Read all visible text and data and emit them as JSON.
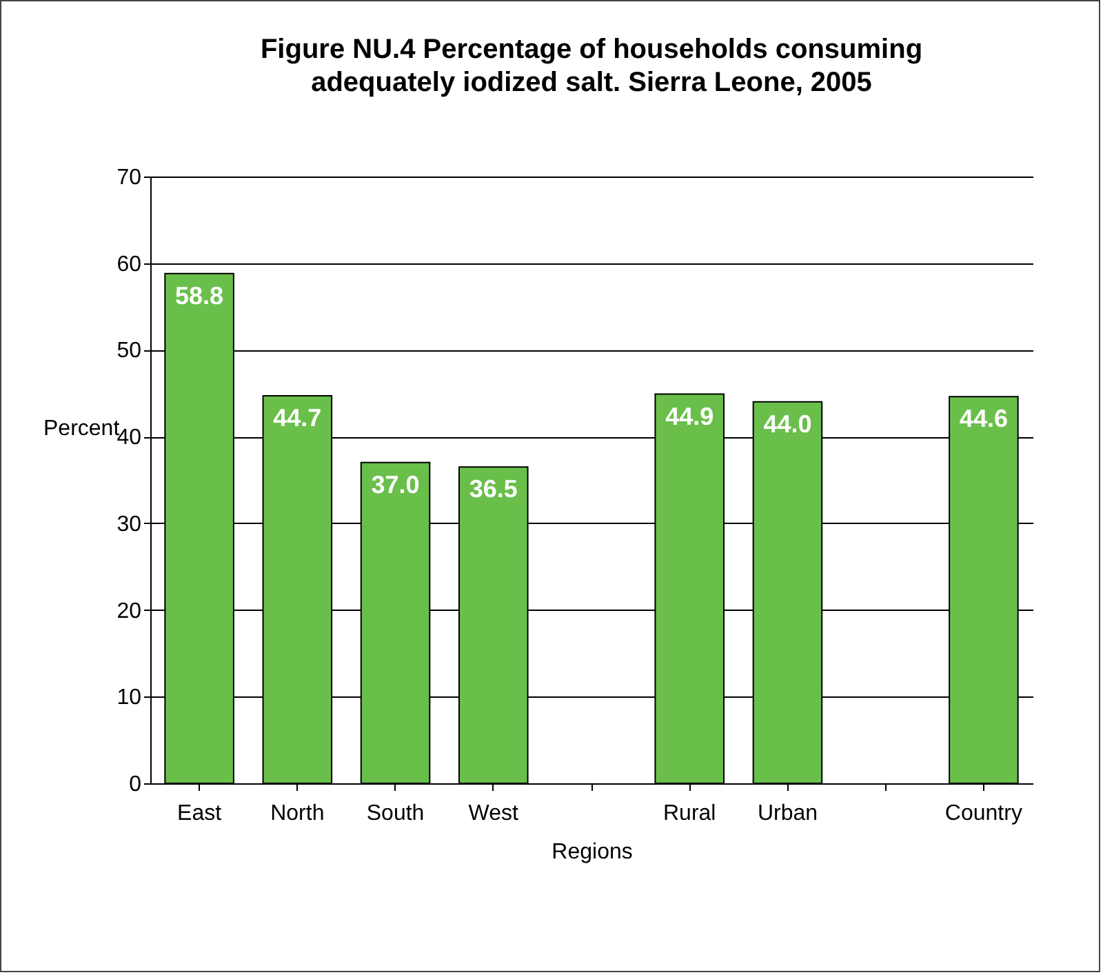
{
  "chart_data": {
    "type": "bar",
    "title": "Figure NU.4 Percentage of households consuming adequately iodized salt. Sierra Leone, 2005",
    "xlabel": "Regions",
    "ylabel": "Percent",
    "categories": [
      "East",
      "North",
      "South",
      "West",
      null,
      "Rural",
      "Urban",
      null,
      "Country"
    ],
    "values": [
      58.8,
      44.7,
      37.0,
      36.5,
      null,
      44.9,
      44.0,
      null,
      44.6
    ],
    "value_labels": [
      "58.8",
      "44.7",
      "37.0",
      "36.5",
      null,
      "44.9",
      "44.0",
      null,
      "44.6"
    ],
    "color": "#6abf4b",
    "ylim": [
      0,
      70
    ],
    "yticks": [
      0,
      10,
      20,
      30,
      40,
      50,
      60,
      70
    ],
    "grid": "y"
  }
}
